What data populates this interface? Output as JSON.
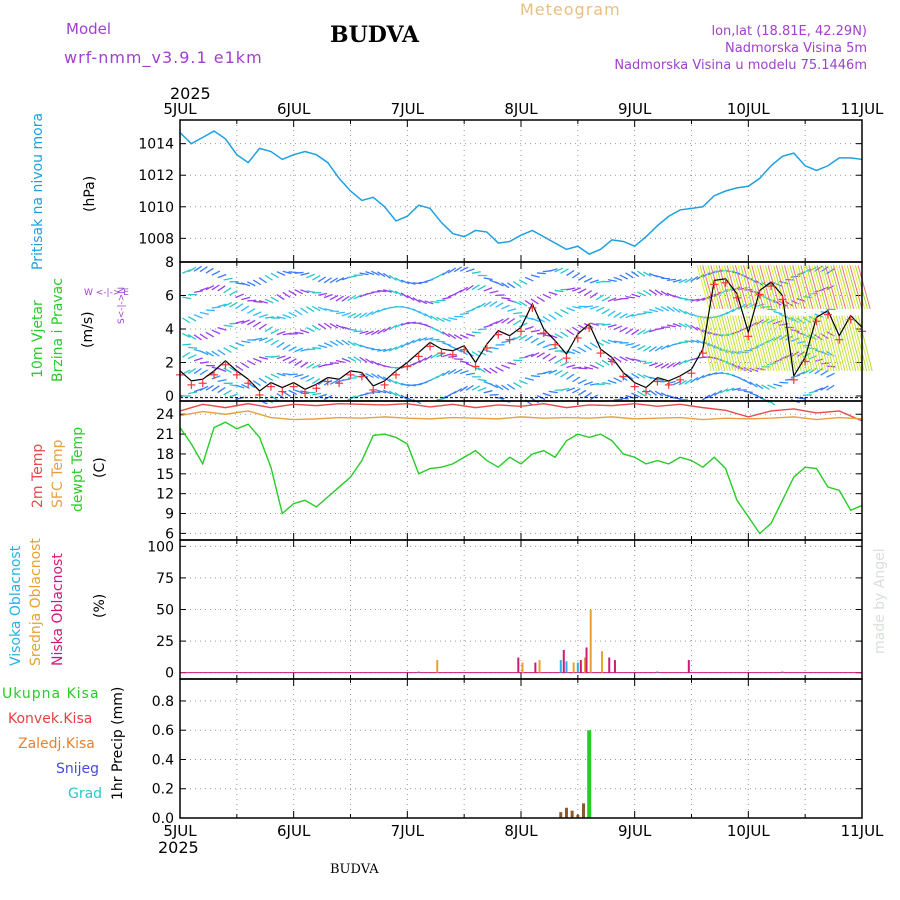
{
  "header": {
    "model_label": "Model",
    "model_value": "wrf-nmm_v3.9.1 e1km",
    "title": "BUDVA",
    "meteogram_label": "Meteogram",
    "lonlat": "lon,lat (18.81E, 42.29N)",
    "altitude": "Nadmorska Visina 5m",
    "model_altitude": "Nadmorska Visina u modelu 75.1446m",
    "year_top": "2025",
    "year_bottom": "2025",
    "footer": "BUDVA",
    "credit": "made by Angel"
  },
  "colors": {
    "pressure": "#1ea0e0",
    "wind_black": "#000000",
    "wind_red": "#ee3a3a",
    "t2m": "#e84a4a",
    "tsfc": "#e8a040",
    "dewpt": "#28cc28",
    "cloud_high": "#28b0e0",
    "cloud_mid": "#e8a030",
    "cloud_low": "#d01878",
    "precip_total": "#28cc28",
    "precip_conv": "#e84040",
    "precip_frozen": "#e88030",
    "snow": "#4848e0",
    "hail": "#28c8c8",
    "purple": "#a040d0"
  },
  "panels": {
    "pressure": {
      "label": "Pritisak na nivou mora",
      "unit": "(hPa)"
    },
    "wind": {
      "label1": "10m Vjetar",
      "label2": "Brzina i Pravac",
      "unit": "(m/s)",
      "compass": "W <-|-> E",
      "compass_v": "S<-|->N"
    },
    "temp": {
      "label1": "2m Temp",
      "label2": "SFC Temp",
      "label3": "dewpt Temp",
      "unit": "(C)"
    },
    "cloud": {
      "label1": "Visoka Oblacnost",
      "label2": "Srednja Oblacnost",
      "label3": "Niska Oblacnost",
      "unit": "(%)"
    },
    "precip": {
      "legend": [
        "Ukupna Kisa",
        "Konvek.Kisa",
        "Zaledj.Kisa",
        "Snijeg",
        "Grad"
      ],
      "unit": "1hr Precip (mm)"
    }
  },
  "chart_data": [
    {
      "type": "line",
      "title": "Pritisak na nivou mora",
      "ylabel": "(hPa)",
      "xlim": [
        0,
        6
      ],
      "ylim": [
        1006.5,
        1015.5
      ],
      "x_tick_labels": [
        "5JUL",
        "6JUL",
        "7JUL",
        "8JUL",
        "9JUL",
        "10JUL",
        "11JUL"
      ],
      "y_ticks": [
        1008,
        1010,
        1012,
        1014
      ],
      "grid": true,
      "series": [
        {
          "x": [
            0,
            0.1,
            0.2,
            0.3,
            0.4,
            0.5,
            0.6,
            0.7,
            0.8,
            0.9,
            1.0,
            1.1,
            1.2,
            1.3,
            1.4,
            1.5,
            1.6,
            1.7,
            1.8,
            1.9,
            2.0,
            2.1,
            2.2,
            2.3,
            2.4,
            2.5,
            2.6,
            2.7,
            2.8,
            2.9,
            3.0,
            3.1,
            3.2,
            3.3,
            3.4,
            3.5,
            3.6,
            3.7,
            3.8,
            3.9,
            4.0,
            4.1,
            4.2,
            4.3,
            4.4,
            4.5,
            4.6,
            4.7,
            4.8,
            4.9,
            5.0,
            5.1,
            5.2,
            5.3,
            5.4,
            5.5,
            5.6,
            5.7,
            5.8,
            5.9,
            6.0
          ],
          "y": [
            1014.7,
            1014.0,
            1014.4,
            1014.8,
            1014.3,
            1013.3,
            1012.8,
            1013.7,
            1013.5,
            1013.0,
            1013.3,
            1013.5,
            1013.3,
            1012.8,
            1011.8,
            1011.0,
            1010.4,
            1010.6,
            1010.0,
            1009.1,
            1009.4,
            1010.1,
            1009.9,
            1009.0,
            1008.3,
            1008.1,
            1008.5,
            1008.4,
            1007.7,
            1007.8,
            1008.2,
            1008.5,
            1008.1,
            1007.7,
            1007.3,
            1007.5,
            1007.0,
            1007.3,
            1007.9,
            1007.8,
            1007.5,
            1008.1,
            1008.8,
            1009.4,
            1009.8,
            1009.9,
            1010.0,
            1010.7,
            1011.0,
            1011.2,
            1011.3,
            1011.8,
            1012.6,
            1013.2,
            1013.4,
            1012.6,
            1012.3,
            1012.6,
            1013.1,
            1013.1,
            1013.0
          ]
        }
      ]
    },
    {
      "type": "line",
      "title": "10m Vjetar Brzina i Pravac",
      "ylabel": "(m/s)",
      "xlim": [
        0,
        6
      ],
      "ylim": [
        -0.3,
        8
      ],
      "x_tick_labels": [
        "5JUL",
        "6JUL",
        "7JUL",
        "8JUL",
        "9JUL",
        "10JUL",
        "11JUL"
      ],
      "y_ticks": [
        0,
        2,
        4,
        6,
        8
      ],
      "grid": true,
      "series": [
        {
          "x": [
            0,
            0.1,
            0.2,
            0.3,
            0.4,
            0.5,
            0.6,
            0.7,
            0.8,
            0.9,
            1.0,
            1.1,
            1.2,
            1.3,
            1.4,
            1.5,
            1.6,
            1.7,
            1.8,
            1.9,
            2.0,
            2.1,
            2.2,
            2.3,
            2.4,
            2.5,
            2.6,
            2.7,
            2.8,
            2.9,
            3.0,
            3.1,
            3.2,
            3.3,
            3.4,
            3.5,
            3.6,
            3.7,
            3.8,
            3.9,
            4.0,
            4.1,
            4.2,
            4.3,
            4.4,
            4.5,
            4.6,
            4.7,
            4.8,
            4.9,
            5.0,
            5.1,
            5.2,
            5.3,
            5.4,
            5.5,
            5.6,
            5.7,
            5.8,
            5.9,
            6.0
          ],
          "y": [
            1.5,
            0.9,
            1.0,
            1.5,
            2.1,
            1.5,
            1.0,
            0.3,
            0.8,
            0.5,
            0.8,
            0.4,
            0.7,
            1.1,
            1.0,
            1.5,
            1.4,
            0.6,
            0.9,
            1.5,
            2.0,
            2.6,
            3.2,
            2.8,
            2.7,
            3.0,
            2.0,
            3.1,
            3.9,
            3.6,
            4.1,
            5.5,
            4.0,
            3.3,
            2.5,
            3.7,
            4.3,
            2.8,
            2.3,
            1.4,
            0.8,
            0.5,
            1.1,
            0.9,
            1.2,
            1.6,
            2.8,
            6.9,
            7.0,
            6.1,
            3.8,
            6.3,
            6.8,
            6.0,
            1.2,
            2.3,
            4.7,
            5.1,
            3.6,
            4.8,
            4.1
          ]
        }
      ]
    },
    {
      "type": "line",
      "title": "2m Temp / SFC Temp / dewpt Temp",
      "ylabel": "(C)",
      "xlim": [
        0,
        6
      ],
      "ylim": [
        5,
        26
      ],
      "x_tick_labels": [
        "5JUL",
        "6JUL",
        "7JUL",
        "8JUL",
        "9JUL",
        "10JUL",
        "11JUL"
      ],
      "y_ticks": [
        6,
        9,
        12,
        15,
        18,
        21,
        24
      ],
      "grid": true,
      "series": [
        {
          "name": "2m Temp",
          "x": [
            0,
            0.2,
            0.4,
            0.6,
            0.8,
            1.0,
            1.2,
            1.4,
            1.6,
            1.8,
            2.0,
            2.2,
            2.4,
            2.6,
            2.8,
            3.0,
            3.2,
            3.4,
            3.6,
            3.8,
            4.0,
            4.2,
            4.4,
            4.6,
            4.8,
            5.0,
            5.2,
            5.4,
            5.6,
            5.8,
            6.0
          ],
          "y": [
            24.5,
            25.5,
            25.0,
            25.6,
            25.0,
            25.5,
            25.3,
            25.6,
            25.5,
            25.4,
            25.6,
            25.1,
            25.5,
            25.0,
            25.4,
            25.2,
            25.6,
            25.0,
            25.4,
            25.3,
            25.6,
            25.2,
            25.5,
            25.0,
            24.6,
            23.6,
            24.5,
            24.8,
            24.2,
            24.5,
            23.0
          ]
        },
        {
          "name": "SFC Temp",
          "x": [
            0,
            0.2,
            0.4,
            0.6,
            0.8,
            1.0,
            1.2,
            1.4,
            1.6,
            1.8,
            2.0,
            2.2,
            2.4,
            2.6,
            2.8,
            3.0,
            3.2,
            3.4,
            3.6,
            3.8,
            4.0,
            4.2,
            4.4,
            4.6,
            4.8,
            5.0,
            5.2,
            5.4,
            5.6,
            5.8,
            6.0
          ],
          "y": [
            23.8,
            24.4,
            24.0,
            24.5,
            23.5,
            23.2,
            23.3,
            23.5,
            23.4,
            23.6,
            23.4,
            23.3,
            23.5,
            23.4,
            23.3,
            23.6,
            23.4,
            23.5,
            23.4,
            23.6,
            23.3,
            23.4,
            23.5,
            23.2,
            23.4,
            23.3,
            23.4,
            23.6,
            23.2,
            23.5,
            23.3
          ]
        },
        {
          "name": "dewpt Temp",
          "x": [
            0,
            0.1,
            0.2,
            0.3,
            0.4,
            0.5,
            0.6,
            0.7,
            0.8,
            0.9,
            1.0,
            1.1,
            1.2,
            1.3,
            1.4,
            1.5,
            1.6,
            1.7,
            1.8,
            1.9,
            2.0,
            2.1,
            2.2,
            2.3,
            2.4,
            2.5,
            2.6,
            2.7,
            2.8,
            2.9,
            3.0,
            3.1,
            3.2,
            3.3,
            3.4,
            3.5,
            3.6,
            3.7,
            3.8,
            3.9,
            4.0,
            4.1,
            4.2,
            4.3,
            4.4,
            4.5,
            4.6,
            4.7,
            4.8,
            4.9,
            5.0,
            5.1,
            5.2,
            5.3,
            5.4,
            5.5,
            5.6,
            5.7,
            5.8,
            5.9,
            6.0
          ],
          "y": [
            22.0,
            19.5,
            16.5,
            22.0,
            22.8,
            21.8,
            22.5,
            20.5,
            16.0,
            9.0,
            10.5,
            11.0,
            10.0,
            11.5,
            13.0,
            14.5,
            17.0,
            20.8,
            21.0,
            20.5,
            19.5,
            15.0,
            15.8,
            16.0,
            16.5,
            17.5,
            18.5,
            17.0,
            16.0,
            17.5,
            16.5,
            18.0,
            18.5,
            17.5,
            20.0,
            21.0,
            20.5,
            21.0,
            20.0,
            18.0,
            17.5,
            16.5,
            17.0,
            16.5,
            17.5,
            17.0,
            16.0,
            17.5,
            15.8,
            11.0,
            8.5,
            6.0,
            7.5,
            11.0,
            14.5,
            16.0,
            15.8,
            13.0,
            12.5,
            9.5,
            10.2
          ]
        }
      ]
    },
    {
      "type": "bar",
      "title": "Visoka / Srednja / Niska Oblacnost",
      "ylabel": "(%)",
      "xlim": [
        0,
        6
      ],
      "ylim": [
        -5,
        105
      ],
      "x_tick_labels": [
        "5JUL",
        "6JUL",
        "7JUL",
        "8JUL",
        "9JUL",
        "10JUL",
        "11JUL"
      ],
      "y_ticks": [
        0,
        25,
        50,
        75,
        100
      ],
      "grid": true,
      "series": [
        {
          "name": "Visoka Oblacnost",
          "x": [
            2.1,
            3.35,
            3.4,
            3.5,
            4.2,
            5.3
          ],
          "values": [
            1,
            10,
            9,
            8,
            1,
            1
          ]
        },
        {
          "name": "Srednja Oblacnost",
          "x": [
            2.25,
            3.0,
            3.15,
            3.45,
            3.55,
            3.6,
            3.7
          ],
          "values": [
            10,
            8,
            10,
            8,
            12,
            50,
            17
          ]
        },
        {
          "name": "Niska Oblacnost",
          "x": [
            2.95,
            3.1,
            3.35,
            3.5,
            3.55,
            3.75,
            3.8,
            4.45
          ],
          "values": [
            12,
            8,
            18,
            10,
            20,
            12,
            10,
            10
          ]
        }
      ]
    },
    {
      "type": "bar",
      "title": "1hr Precip",
      "ylabel": "1hr Precip (mm)",
      "xlim": [
        0,
        6
      ],
      "ylim": [
        0,
        0.95
      ],
      "x_tick_labels": [
        "5JUL",
        "6JUL",
        "7JUL",
        "8JUL",
        "9JUL",
        "10JUL",
        "11JUL"
      ],
      "y_ticks": [
        0.0,
        0.2,
        0.4,
        0.6,
        0.8
      ],
      "grid": true,
      "series": [
        {
          "name": "Ukupna Kisa",
          "x": [
            3.6
          ],
          "values": [
            0.6
          ]
        },
        {
          "name": "Konvek.Kisa",
          "x": [
            3.35,
            3.4,
            3.45,
            3.5,
            3.55
          ],
          "values": [
            0.04,
            0.07,
            0.05,
            0.02,
            0.1
          ]
        }
      ]
    }
  ]
}
